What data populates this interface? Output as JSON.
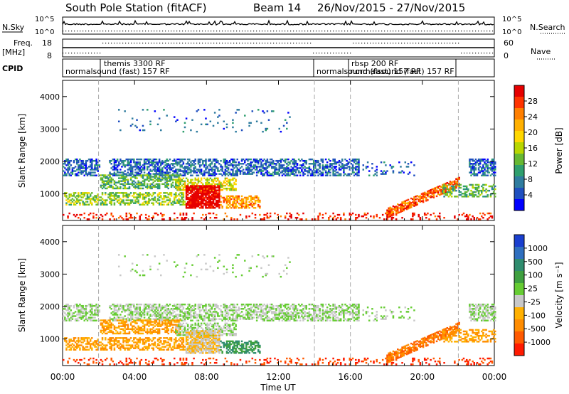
{
  "header": {
    "station": "South Pole Station (fitACF)",
    "beam": "Beam 14",
    "dates": "26/Nov/2015 - 27/Nov/2015"
  },
  "labels": {
    "nsky": "N.Sky",
    "nsearch": "N.Search",
    "freq_line1": "Freq.",
    "freq_line2": "[MHz]",
    "nave": "Nave",
    "cpid": "CPID",
    "noise_top": "10^5",
    "noise_bottom": "10^0",
    "noise_right_top": "10^5",
    "noise_right_bottom": "10^0",
    "freq_top": "18",
    "freq_bottom": "8",
    "nave_top": "60",
    "nave_bottom": "0"
  },
  "cpid_segments": [
    {
      "text": "normalsound (fast) 157 RF"
    },
    {
      "text": "themis 3300 RF"
    },
    {
      "text": "normalsound (fast) 157 RF"
    },
    {
      "text": "rbsp 200 RF"
    },
    {
      "text": "normalsound (fast) 157 RF"
    }
  ],
  "chart_data": [
    {
      "type": "heatmap",
      "title": "Power",
      "ylabel": "Slant Range [km]",
      "colorbar_label": "Power [dB]",
      "colorbar_ticks": [
        "28",
        "24",
        "20",
        "16",
        "12",
        "8",
        "4"
      ],
      "colorbar_colors": [
        "#e60000",
        "#ff3300",
        "#ff7f00",
        "#ffb000",
        "#ffd700",
        "#b8d600",
        "#66b832",
        "#2f9f6e",
        "#2f7c9f",
        "#1f4fbf",
        "#0000ff"
      ],
      "y_ticks": [
        "4000",
        "3000",
        "2000",
        "1000"
      ],
      "ylim": [
        180,
        4500
      ],
      "xlim": [
        "00:00",
        "24:00"
      ]
    },
    {
      "type": "heatmap",
      "title": "Velocity",
      "ylabel": "Slant Range [km]",
      "colorbar_label": "Velocity [m s⁻¹]",
      "colorbar_ticks": [
        "1000",
        "500",
        "100",
        "25",
        "-25",
        "-100",
        "-500",
        "-1000"
      ],
      "colorbar_colors": [
        "#1a3fcf",
        "#2f6fbf",
        "#2f8c6e",
        "#3fa040",
        "#66cc33",
        "#c8c8c8",
        "#ffb000",
        "#ff8c00",
        "#ff5a00",
        "#ff1a00"
      ],
      "y_ticks": [
        "4000",
        "3000",
        "2000",
        "1000"
      ],
      "ylim": [
        180,
        4500
      ],
      "xlim": [
        "00:00",
        "24:00"
      ]
    }
  ],
  "x_axis": {
    "label": "Time UT",
    "ticks": [
      "00:00",
      "04:00",
      "08:00",
      "12:00",
      "16:00",
      "20:00",
      "00:00"
    ]
  }
}
